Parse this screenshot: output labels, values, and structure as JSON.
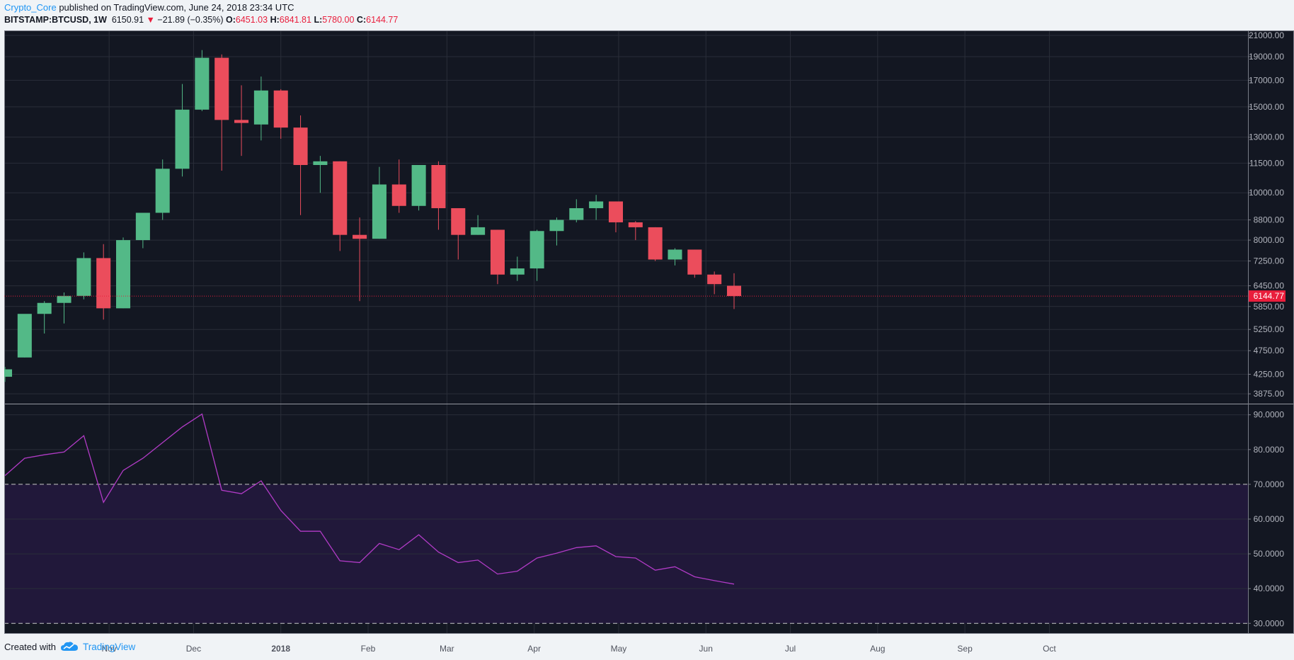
{
  "header": {
    "author": "Crypto_Core",
    "published": "published on TradingView.com, June 24, 2018 23:34 UTC"
  },
  "ohlc": {
    "symbol": "BITSTAMP:BTCUSD, 1W",
    "last": "6150.91",
    "arrow": "▼",
    "change": "−21.89 (−0.35%)",
    "open_label": "O:",
    "open": "6451.03",
    "high_label": "H:",
    "high": "6841.81",
    "low_label": "L:",
    "low": "5780.00",
    "close_label": "C:",
    "close": "6144.77"
  },
  "footer": {
    "created_with": "Created with",
    "brand": "TradingView",
    "brand_icon": "tradingview-cloud-icon"
  },
  "colors": {
    "background": "#131722",
    "grid": "#2a2e39",
    "up": "#53b987",
    "down": "#eb4d5c",
    "rsi_line": "#b13bc6",
    "rsi_band": "#21183a",
    "price_line": "#e91e3c"
  },
  "chart_data": [
    {
      "type": "candlestick",
      "scale": "log",
      "ylim": [
        3700,
        21500
      ],
      "yticks": [
        "21000.00",
        "19000.00",
        "17000.00",
        "15000.00",
        "13000.00",
        "11500.00",
        "10000.00",
        "8800.00",
        "8000.00",
        "7250.00",
        "6450.00",
        "5850.00",
        "5250.00",
        "4750.00",
        "4250.00",
        "3875.00"
      ],
      "xticks": [
        "Nov",
        "Dec",
        "2018",
        "Feb",
        "Mar",
        "Apr",
        "May",
        "Jun",
        "Jul",
        "Aug",
        "Sep",
        "Oct"
      ],
      "last_price_label": "6144.77",
      "candles": [
        {
          "date": "2017-09-25",
          "o": 4200,
          "h": 4400,
          "l": 4100,
          "c": 4350
        },
        {
          "date": "2017-10-02",
          "o": 4600,
          "h": 5600,
          "l": 4600,
          "c": 5650
        },
        {
          "date": "2017-10-09",
          "o": 5650,
          "h": 6000,
          "l": 5150,
          "c": 5950
        },
        {
          "date": "2017-10-16",
          "o": 5950,
          "h": 6250,
          "l": 5400,
          "c": 6150
        },
        {
          "date": "2017-10-23",
          "o": 6150,
          "h": 7550,
          "l": 6050,
          "c": 7350
        },
        {
          "date": "2017-10-30",
          "o": 7350,
          "h": 7850,
          "l": 5500,
          "c": 5800
        },
        {
          "date": "2017-11-06",
          "o": 5800,
          "h": 8100,
          "l": 5800,
          "c": 8000
        },
        {
          "date": "2017-11-13",
          "o": 8000,
          "h": 9100,
          "l": 7700,
          "c": 9100
        },
        {
          "date": "2017-11-20",
          "o": 9100,
          "h": 11700,
          "l": 8800,
          "c": 11200
        },
        {
          "date": "2017-11-27",
          "o": 11200,
          "h": 16700,
          "l": 10800,
          "c": 14800
        },
        {
          "date": "2017-12-04",
          "o": 14800,
          "h": 19600,
          "l": 14700,
          "c": 18900
        },
        {
          "date": "2017-12-11",
          "o": 18900,
          "h": 19200,
          "l": 11100,
          "c": 14100
        },
        {
          "date": "2017-12-18",
          "o": 14100,
          "h": 16600,
          "l": 11900,
          "c": 13900
        },
        {
          "date": "2017-12-25",
          "o": 13800,
          "h": 17300,
          "l": 12800,
          "c": 16200
        },
        {
          "date": "2018-01-01",
          "o": 16200,
          "h": 16300,
          "l": 12900,
          "c": 13600
        },
        {
          "date": "2018-01-08",
          "o": 13600,
          "h": 14400,
          "l": 9000,
          "c": 11400
        },
        {
          "date": "2018-01-15",
          "o": 11400,
          "h": 11900,
          "l": 10000,
          "c": 11600
        },
        {
          "date": "2018-01-22",
          "o": 11600,
          "h": 11600,
          "l": 7600,
          "c": 8200
        },
        {
          "date": "2018-01-29",
          "o": 8200,
          "h": 8900,
          "l": 6000,
          "c": 8050
        },
        {
          "date": "2018-02-05",
          "o": 8050,
          "h": 11300,
          "l": 8050,
          "c": 10400
        },
        {
          "date": "2018-02-12",
          "o": 10400,
          "h": 11700,
          "l": 9100,
          "c": 9400
        },
        {
          "date": "2018-02-19",
          "o": 9400,
          "h": 11400,
          "l": 9200,
          "c": 11400
        },
        {
          "date": "2018-02-26",
          "o": 11400,
          "h": 11600,
          "l": 8400,
          "c": 9300
        },
        {
          "date": "2018-03-05",
          "o": 9300,
          "h": 9300,
          "l": 7300,
          "c": 8200
        },
        {
          "date": "2018-03-12",
          "o": 8200,
          "h": 9000,
          "l": 8200,
          "c": 8500
        },
        {
          "date": "2018-03-19",
          "o": 8400,
          "h": 8400,
          "l": 6500,
          "c": 6800
        },
        {
          "date": "2018-03-26",
          "o": 6800,
          "h": 7400,
          "l": 6600,
          "c": 7000
        },
        {
          "date": "2018-04-02",
          "o": 7000,
          "h": 8400,
          "l": 6600,
          "c": 8350
        },
        {
          "date": "2018-04-09",
          "o": 8350,
          "h": 8900,
          "l": 7800,
          "c": 8800
        },
        {
          "date": "2018-04-16",
          "o": 8800,
          "h": 9700,
          "l": 8700,
          "c": 9300
        },
        {
          "date": "2018-04-23",
          "o": 9300,
          "h": 9900,
          "l": 8800,
          "c": 9600
        },
        {
          "date": "2018-04-30",
          "o": 9600,
          "h": 9600,
          "l": 8300,
          "c": 8700
        },
        {
          "date": "2018-05-07",
          "o": 8700,
          "h": 8750,
          "l": 8000,
          "c": 8500
        },
        {
          "date": "2018-05-14",
          "o": 8500,
          "h": 8500,
          "l": 7250,
          "c": 7300
        },
        {
          "date": "2018-05-21",
          "o": 7300,
          "h": 7700,
          "l": 7100,
          "c": 7650
        },
        {
          "date": "2018-05-28",
          "o": 7650,
          "h": 7650,
          "l": 6700,
          "c": 6800
        },
        {
          "date": "2018-06-04",
          "o": 6800,
          "h": 6900,
          "l": 6200,
          "c": 6500
        },
        {
          "date": "2018-06-11",
          "o": 6451,
          "h": 6841.81,
          "l": 5780,
          "c": 6144.77
        }
      ]
    },
    {
      "type": "line",
      "name": "RSI",
      "ylim": [
        27,
        93
      ],
      "yticks": [
        "90.0000",
        "80.0000",
        "70.0000",
        "60.0000",
        "50.0000",
        "40.0000",
        "30.0000"
      ],
      "band": [
        30,
        70
      ],
      "x": [
        "2017-09-25",
        "2017-10-02",
        "2017-10-09",
        "2017-10-16",
        "2017-10-23",
        "2017-10-30",
        "2017-11-06",
        "2017-11-13",
        "2017-11-20",
        "2017-11-27",
        "2017-12-04",
        "2017-12-11",
        "2017-12-18",
        "2017-12-25",
        "2018-01-01",
        "2018-01-08",
        "2018-01-15",
        "2018-01-22",
        "2018-01-29",
        "2018-02-05",
        "2018-02-12",
        "2018-02-19",
        "2018-02-26",
        "2018-03-05",
        "2018-03-12",
        "2018-03-19",
        "2018-03-26",
        "2018-04-02",
        "2018-04-09",
        "2018-04-16",
        "2018-04-23",
        "2018-04-30",
        "2018-05-07",
        "2018-05-14",
        "2018-05-21",
        "2018-05-28",
        "2018-06-04",
        "2018-06-11"
      ],
      "values": [
        72.5,
        77.5,
        78.5,
        79.3,
        84,
        64.8,
        74,
        77.5,
        82,
        86.5,
        90.2,
        68.3,
        67.3,
        71,
        62.5,
        56.5,
        56.5,
        48,
        47.5,
        53,
        51.2,
        55.5,
        50.5,
        47.5,
        48.2,
        44.2,
        45,
        48.8,
        50.2,
        51.8,
        52.3,
        49.2,
        48.8,
        45.3,
        46.3,
        43.4,
        42.3,
        41.3
      ]
    }
  ]
}
